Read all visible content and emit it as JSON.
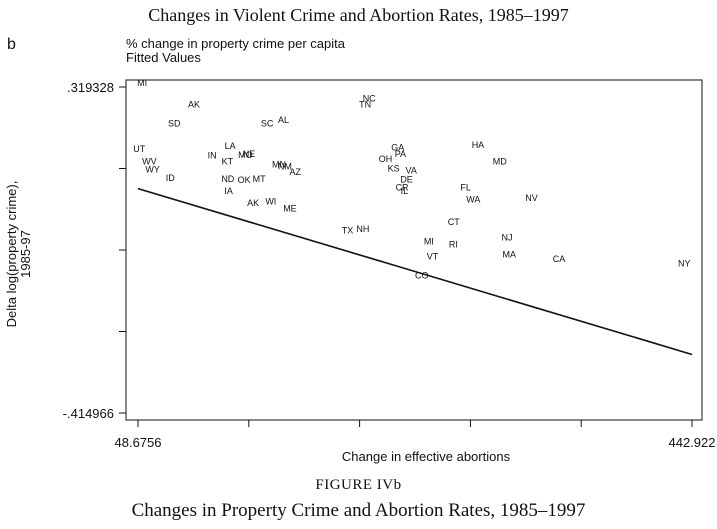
{
  "page": {
    "top_caption": "Changes in Violent Crime and Abortion Rates, 1985–1997",
    "panel_letter": "b",
    "figure_label": "FIGURE IVb",
    "bottom_caption": "Changes in Property Crime and Abortion Rates, 1985–1997"
  },
  "chart_data": {
    "type": "scatter",
    "title": "",
    "legend": [
      "% change in property crime per capita",
      "Fitted Values"
    ],
    "xlabel": "Change in effective abortions",
    "ylabel": "Delta log(property crime), 1985-97",
    "xlim": [
      48.6756,
      442.922
    ],
    "ylim": [
      -0.414966,
      0.319328
    ],
    "x_tick_labels": [
      "48.6756",
      "442.922"
    ],
    "y_tick_labels": [
      ".319328",
      "-.414966"
    ],
    "fitted_line": {
      "x": [
        48.6756,
        442.922
      ],
      "y": [
        0.0905,
        -0.2831
      ]
    },
    "points": [
      {
        "label": "MI",
        "x": 51.6,
        "y": 0.3218
      },
      {
        "label": "AK",
        "x": 88.5,
        "y": 0.2728
      },
      {
        "label": "SD",
        "x": 74.5,
        "y": 0.2298
      },
      {
        "label": "NC",
        "x": 213.2,
        "y": 0.2868
      },
      {
        "label": "TN",
        "x": 210.3,
        "y": 0.2728
      },
      {
        "label": "SC",
        "x": 140.6,
        "y": 0.2308
      },
      {
        "label": "AL",
        "x": 152.2,
        "y": 0.2378
      },
      {
        "label": "LA",
        "x": 114.2,
        "y": 0.1794
      },
      {
        "label": "UT",
        "x": 49.6,
        "y": 0.1725
      },
      {
        "label": "GA",
        "x": 233.5,
        "y": 0.1759
      },
      {
        "label": "PA",
        "x": 235.4,
        "y": 0.1619
      },
      {
        "label": "HA",
        "x": 290.6,
        "y": 0.1824
      },
      {
        "label": "IN",
        "x": 101.4,
        "y": 0.1584
      },
      {
        "label": "NE",
        "x": 127.7,
        "y": 0.1611
      },
      {
        "label": "MO",
        "x": 125.1,
        "y": 0.1592
      },
      {
        "label": "OH",
        "x": 224.8,
        "y": 0.1505
      },
      {
        "label": "MD",
        "x": 306.1,
        "y": 0.1444
      },
      {
        "label": "WV",
        "x": 56.8,
        "y": 0.1444
      },
      {
        "label": "KT",
        "x": 112.3,
        "y": 0.1444
      },
      {
        "label": "MN",
        "x": 149.0,
        "y": 0.1382
      },
      {
        "label": "NM",
        "x": 153.2,
        "y": 0.133
      },
      {
        "label": "WY",
        "x": 59.1,
        "y": 0.1269
      },
      {
        "label": "KS",
        "x": 230.6,
        "y": 0.1286
      },
      {
        "label": "VA",
        "x": 243.1,
        "y": 0.1243
      },
      {
        "label": "AZ",
        "x": 160.6,
        "y": 0.1208
      },
      {
        "label": "ID",
        "x": 71.6,
        "y": 0.1077
      },
      {
        "label": "ND",
        "x": 112.6,
        "y": 0.1059
      },
      {
        "label": "OK",
        "x": 124.2,
        "y": 0.1033
      },
      {
        "label": "MT",
        "x": 134.9,
        "y": 0.105
      },
      {
        "label": "DE",
        "x": 239.8,
        "y": 0.1042
      },
      {
        "label": "CR",
        "x": 236.6,
        "y": 0.0858
      },
      {
        "label": "IL",
        "x": 238.2,
        "y": 0.0788
      },
      {
        "label": "FL",
        "x": 281.8,
        "y": 0.0867
      },
      {
        "label": "NV",
        "x": 328.7,
        "y": 0.0631
      },
      {
        "label": "WA",
        "x": 287.3,
        "y": 0.0587
      },
      {
        "label": "IA",
        "x": 113.2,
        "y": 0.0788
      },
      {
        "label": "WI",
        "x": 143.2,
        "y": 0.0552
      },
      {
        "label": "AK",
        "x": 130.6,
        "y": 0.0517
      },
      {
        "label": "ME",
        "x": 156.8,
        "y": 0.0386
      },
      {
        "label": "CT",
        "x": 273.4,
        "y": 0.008
      },
      {
        "label": "NH",
        "x": 208.7,
        "y": -0.0076
      },
      {
        "label": "TX",
        "x": 197.8,
        "y": -0.0111
      },
      {
        "label": "NJ",
        "x": 311.3,
        "y": -0.026
      },
      {
        "label": "MI",
        "x": 255.7,
        "y": -0.0356
      },
      {
        "label": "RI",
        "x": 273.1,
        "y": -0.0418
      },
      {
        "label": "MA",
        "x": 312.9,
        "y": -0.0645
      },
      {
        "label": "VT",
        "x": 258.3,
        "y": -0.0689
      },
      {
        "label": "CA",
        "x": 348.3,
        "y": -0.075
      },
      {
        "label": "NY",
        "x": 437.4,
        "y": -0.0846
      },
      {
        "label": "CO",
        "x": 250.6,
        "y": -0.1125
      }
    ]
  }
}
